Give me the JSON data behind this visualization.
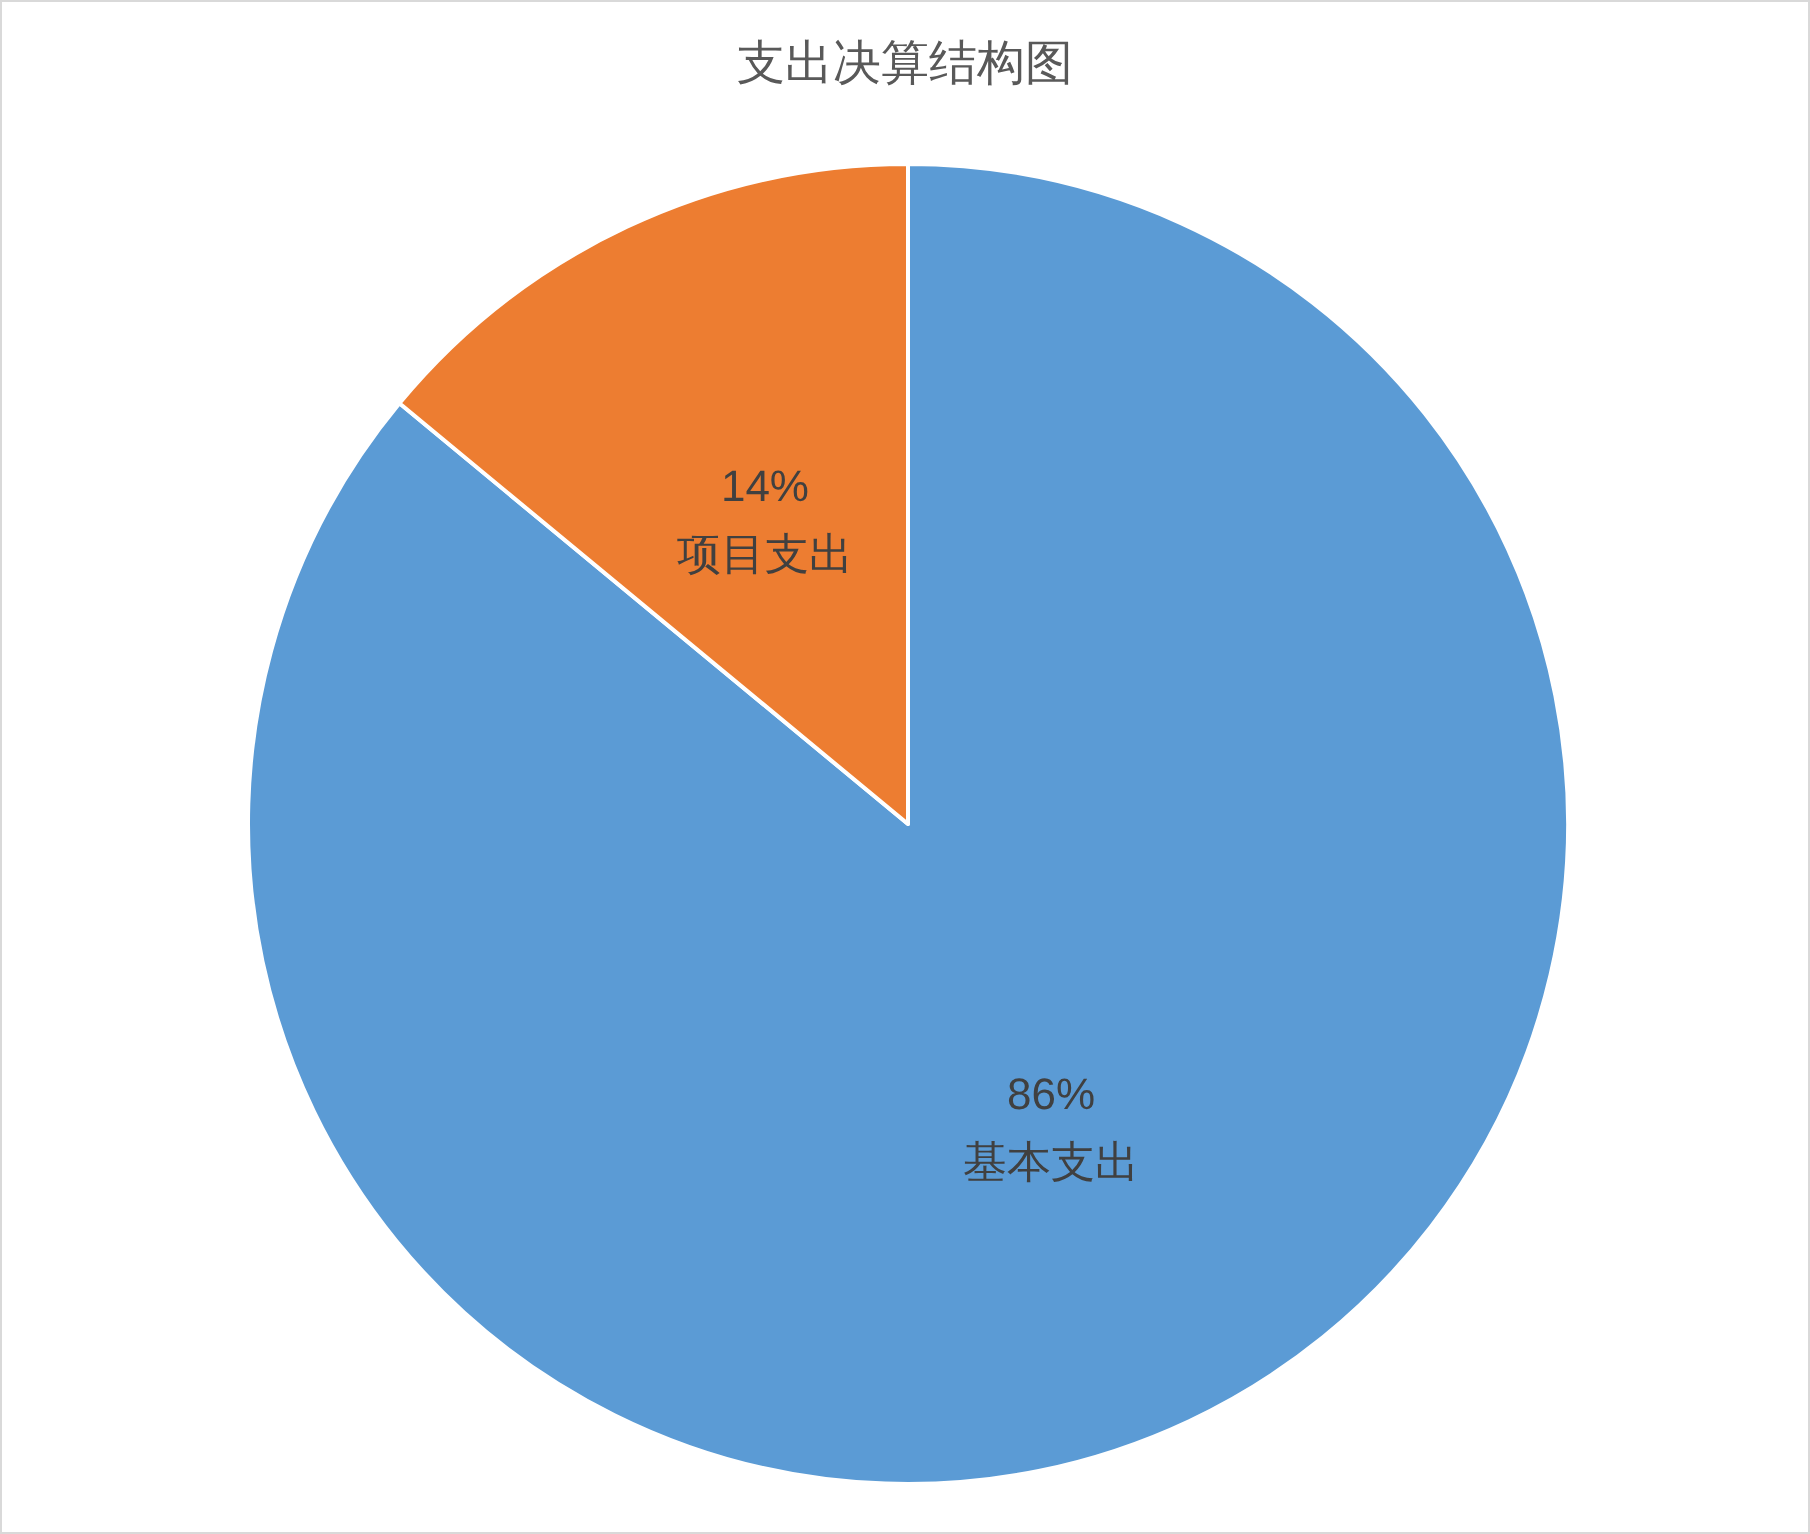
{
  "chart_data": {
    "type": "pie",
    "title": "支出决算结构图",
    "categories": [
      "基本支出",
      "项目支出"
    ],
    "values": [
      86,
      14
    ],
    "colors": [
      "#5b9bd5",
      "#ed7d31"
    ],
    "value_labels": [
      "86%",
      "14%"
    ],
    "legend": false
  }
}
